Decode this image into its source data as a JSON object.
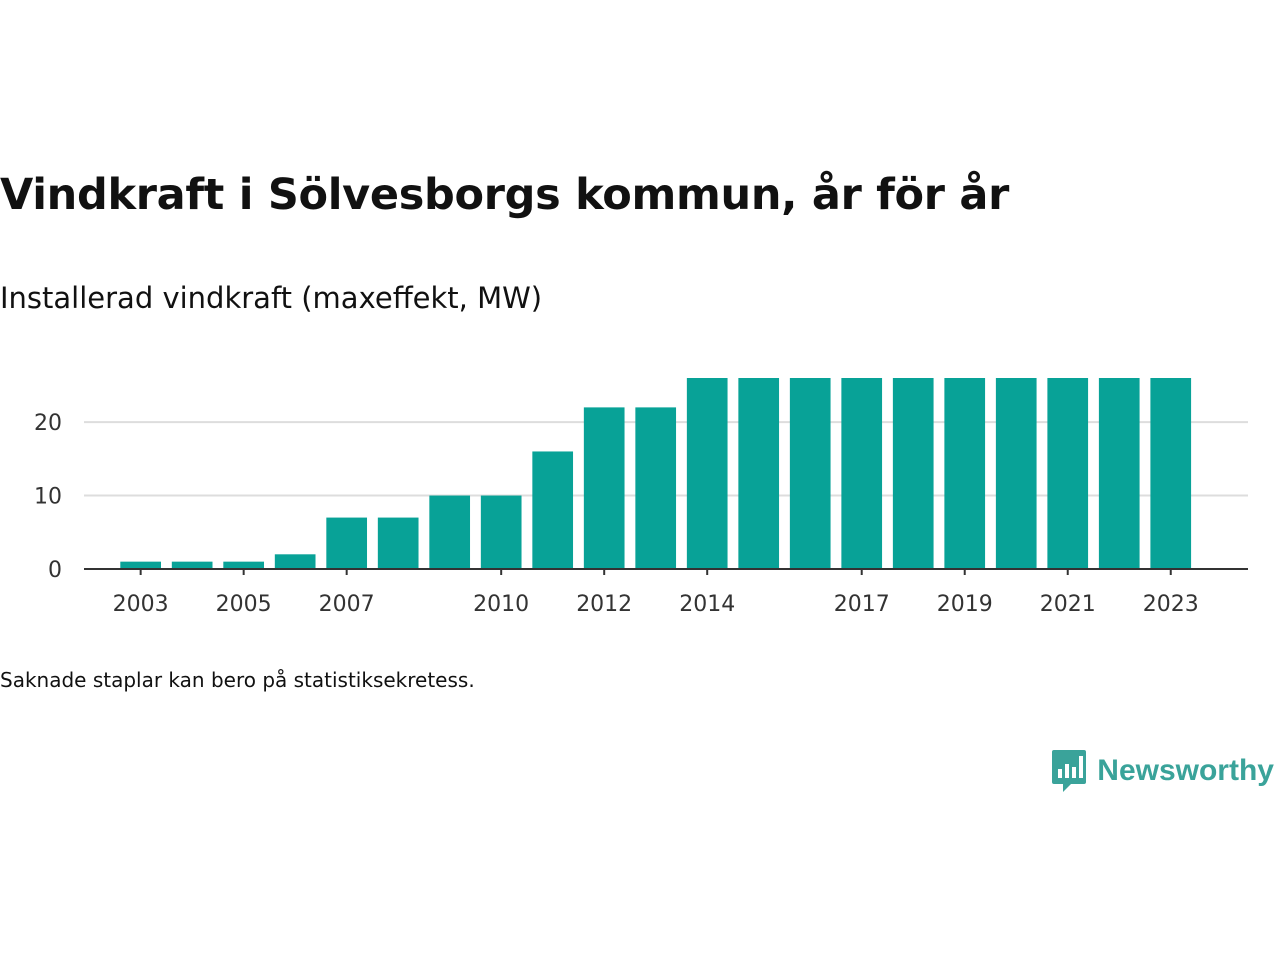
{
  "header": {
    "title": "Vindkraft i Sölvesborgs kommun, år för år",
    "subtitle": "Installerad vindkraft (maxeffekt, MW)"
  },
  "footnote": "Saknade staplar kan bero på statistiksekretess.",
  "brand": {
    "name": "Newsworthy",
    "icon": "newsworthy-logo-icon",
    "color": "#3aa39a"
  },
  "colors": {
    "bar": "#08a297",
    "grid": "#dddddd",
    "axis": "#333333"
  },
  "chart_data": {
    "type": "bar",
    "title": "Vindkraft i Sölvesborgs kommun, år för år",
    "subtitle": "Installerad vindkraft (maxeffekt, MW)",
    "xlabel": "",
    "ylabel": "",
    "categories": [
      2003,
      2004,
      2005,
      2006,
      2007,
      2008,
      2009,
      2010,
      2011,
      2012,
      2013,
      2014,
      2015,
      2016,
      2017,
      2018,
      2019,
      2020,
      2021,
      2022,
      2023
    ],
    "values": [
      1,
      1,
      1,
      2,
      7,
      7,
      10,
      10,
      16,
      22,
      22,
      26,
      26,
      26,
      26,
      26,
      26,
      26,
      26,
      26,
      26
    ],
    "x_tick_labels": [
      "2003",
      "2005",
      "2007",
      "2010",
      "2012",
      "2014",
      "2017",
      "2019",
      "2021",
      "2023"
    ],
    "y_ticks": [
      0,
      10,
      20
    ],
    "xlim": [
      2001.9,
      2024.5
    ],
    "ylim": [
      0,
      26
    ],
    "grid": true,
    "legend": "none"
  }
}
